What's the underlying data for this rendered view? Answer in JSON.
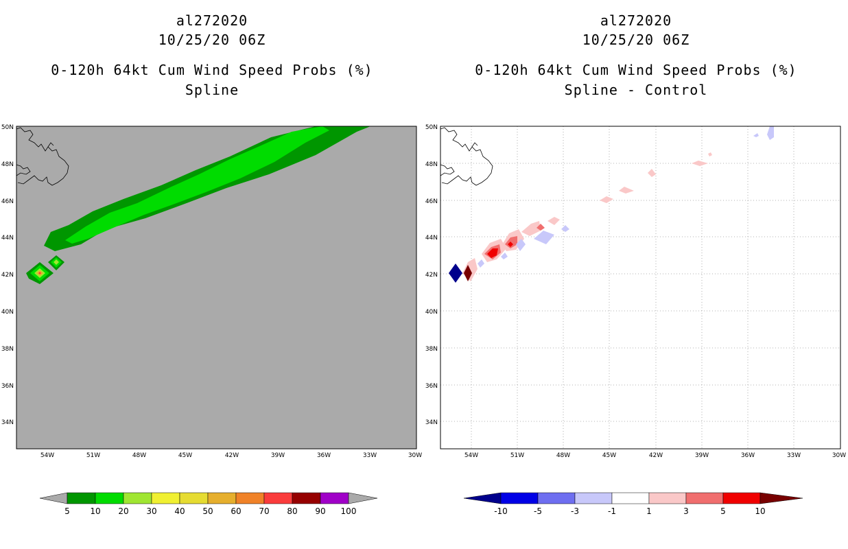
{
  "panels": [
    {
      "storm_id": "al272020",
      "datetime": "10/25/20 06Z",
      "product": "0-120h 64kt Cum Wind Speed Probs (%)",
      "variant": "Spline",
      "colorbar": {
        "labels": [
          "5",
          "10",
          "20",
          "30",
          "40",
          "50",
          "60",
          "70",
          "80",
          "90",
          "100"
        ],
        "colors": [
          "#009600",
          "#00dc00",
          "#a0e632",
          "#f0f032",
          "#e6dc32",
          "#e6af2d",
          "#f08228",
          "#fa3c3c",
          "#960000",
          "#a000c8"
        ],
        "extend_color": "#aaaaaa"
      }
    },
    {
      "storm_id": "al272020",
      "datetime": "10/25/20 06Z",
      "product": "0-120h 64kt Cum Wind Speed Probs (%)",
      "variant": "Spline - Control",
      "colorbar": {
        "labels": [
          "-10",
          "-5",
          "-3",
          "-1",
          "1",
          "3",
          "5",
          "10"
        ],
        "colors": [
          "#0000e6",
          "#6e6ef0",
          "#c8c8fa",
          "#ffffff",
          "#fac8c8",
          "#f06e6e",
          "#f00000"
        ],
        "low_extend": "#00008c",
        "high_extend": "#780000"
      }
    }
  ],
  "map": {
    "lat_ticks": [
      "50N",
      "48N",
      "46N",
      "44N",
      "42N",
      "40N",
      "38N",
      "36N",
      "34N"
    ],
    "lon_ticks": [
      "54W",
      "51W",
      "48W",
      "45W",
      "42W",
      "39W",
      "36W",
      "33W",
      "30W"
    ],
    "lat_range": [
      32.5,
      50
    ],
    "lon_range": [
      -56.5,
      -30
    ],
    "background_left": "#aaaaaa",
    "gridlines_right": true
  }
}
